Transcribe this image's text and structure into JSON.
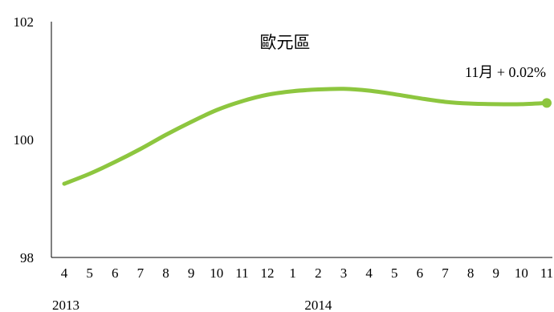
{
  "chart_data": {
    "type": "line",
    "title": "歐元區",
    "annotation": "11月 + 0.02%",
    "xlabel": "",
    "ylabel": "",
    "ylim": [
      98,
      102
    ],
    "yticks": [
      "98",
      "100",
      "102"
    ],
    "categories": [
      "4",
      "5",
      "6",
      "7",
      "8",
      "9",
      "10",
      "11",
      "12",
      "1",
      "2",
      "3",
      "4",
      "5",
      "6",
      "7",
      "8",
      "9",
      "10",
      "11"
    ],
    "year_labels": [
      {
        "label": "2013",
        "at_index": 0
      },
      {
        "label": "2014",
        "at_index": 10
      }
    ],
    "series": [
      {
        "values": [
          99.25,
          99.42,
          99.62,
          99.84,
          100.08,
          100.3,
          100.5,
          100.65,
          100.76,
          100.82,
          100.85,
          100.86,
          100.83,
          100.77,
          100.7,
          100.64,
          100.61,
          100.6,
          100.6,
          100.62
        ],
        "color": "#8dc63f"
      }
    ],
    "grid": false,
    "legend": "none",
    "end_marker": true
  }
}
